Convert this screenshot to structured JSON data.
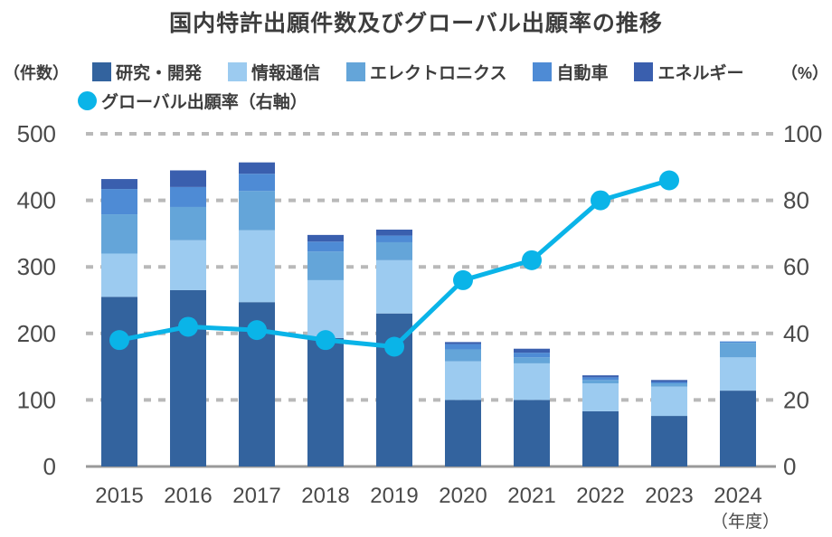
{
  "title": "国内特許出願件数及びグローバル出願率の推移",
  "chart_data": {
    "type": "bar+line",
    "subtype": "stacked-column with right-axis line",
    "title": "国内特許出願件数及びグローバル出願率の推移",
    "categories": [
      "2015",
      "2016",
      "2017",
      "2018",
      "2019",
      "2020",
      "2021",
      "2022",
      "2023",
      "2024"
    ],
    "series": [
      {
        "name": "研究・開発",
        "type": "bar",
        "axis": "left",
        "color": "#33639e",
        "values": [
          255,
          265,
          247,
          193,
          230,
          100,
          100,
          83,
          76,
          114
        ]
      },
      {
        "name": "情報通信",
        "type": "bar",
        "axis": "left",
        "color": "#9ccbf0",
        "values": [
          65,
          75,
          108,
          87,
          80,
          58,
          55,
          42,
          44,
          50
        ]
      },
      {
        "name": "エレクトロニクス",
        "type": "bar",
        "axis": "left",
        "color": "#64a5d9",
        "values": [
          59,
          50,
          59,
          43,
          27,
          18,
          9,
          5,
          5,
          22
        ]
      },
      {
        "name": "自動車",
        "type": "bar",
        "axis": "left",
        "color": "#4e8bd5",
        "values": [
          38,
          30,
          26,
          15,
          10,
          8,
          7,
          4,
          2,
          2
        ]
      },
      {
        "name": "エネルギー",
        "type": "bar",
        "axis": "left",
        "color": "#3a5fae",
        "values": [
          15,
          25,
          17,
          10,
          9,
          3,
          6,
          3,
          3,
          0
        ]
      },
      {
        "name": "グローバル出願率（右軸）",
        "type": "line",
        "axis": "right",
        "color": "#0ab4e8",
        "values": [
          38,
          42,
          41,
          38,
          36,
          56,
          62,
          80,
          86,
          null
        ]
      }
    ],
    "left_axis": {
      "unit": "（件数）",
      "min": 0,
      "max": 500,
      "ticks": [
        0,
        100,
        200,
        300,
        400,
        500
      ]
    },
    "right_axis": {
      "unit": "（%）",
      "min": 0,
      "max": 100,
      "ticks": [
        0,
        20,
        40,
        60,
        80,
        100
      ]
    },
    "x_axis": {
      "unit": "（年度）"
    },
    "grid": "horizontal dashed gridlines, solid baseline",
    "legend_position": "top",
    "colors": {
      "grid": "#b9b9b9",
      "baseline": "#9a9a9a",
      "tick_label": "#4a4a4a",
      "text": "#3d3d3d"
    }
  }
}
